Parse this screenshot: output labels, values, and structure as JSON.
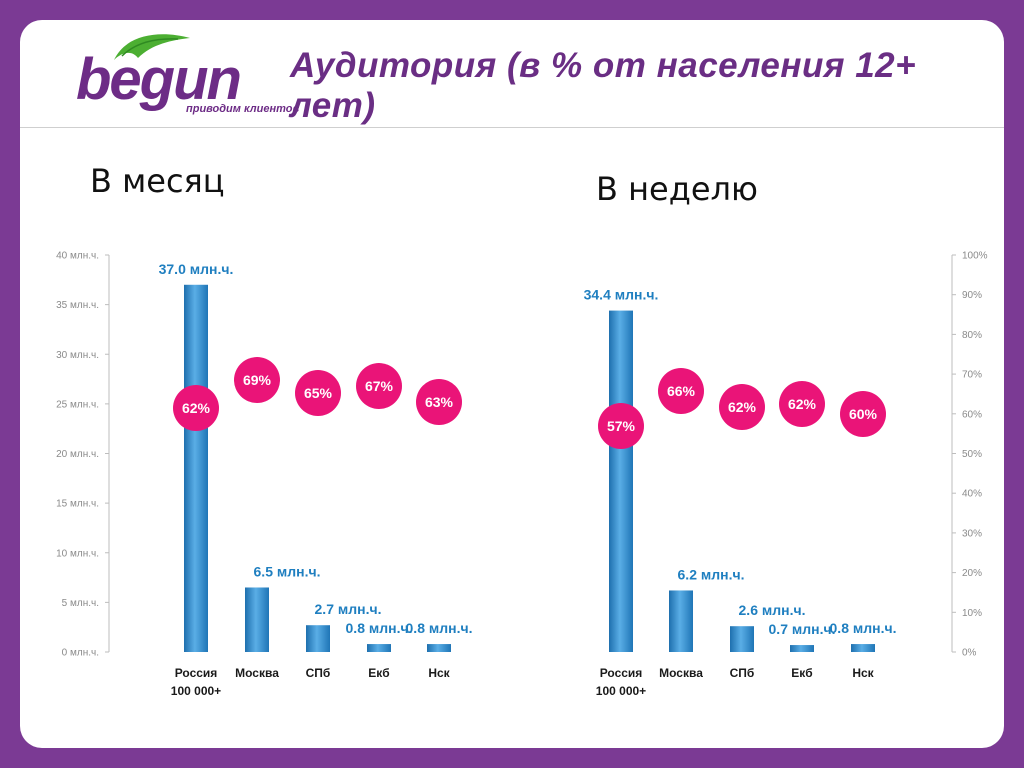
{
  "header": {
    "logo_text": "begun",
    "logo_tagline": "приводим клиентов",
    "title": "Аудитория (в % от населения 12+ лет)"
  },
  "colors": {
    "background": "#7b3a94",
    "bar": "#2f86c4",
    "bubble": "#ea1478",
    "value_label": "#1f7fc0",
    "logo_green": "#4caf32",
    "logo_purple": "#6d2c86"
  },
  "chart_data": [
    {
      "type": "bar",
      "title": "В месяц",
      "categories": [
        "Россия\n100 000+",
        "Москва",
        "СПб",
        "Екб",
        "Нск"
      ],
      "values": [
        37.0,
        6.5,
        2.7,
        0.8,
        0.8
      ],
      "value_labels": [
        "37.0 млн.ч.",
        "6.5 млн.ч.",
        "2.7 млн.ч.",
        "0.8 млн.ч.",
        "0.8 млн.ч."
      ],
      "percent_series": [
        62,
        69,
        65,
        67,
        63
      ],
      "percent_labels": [
        "62%",
        "69%",
        "65%",
        "67%",
        "63%"
      ],
      "ylim": [
        0,
        40
      ],
      "yticks": [
        0,
        5,
        10,
        15,
        20,
        25,
        30,
        35,
        40
      ],
      "ytick_labels": [
        "0 млн.ч.",
        "5 млн.ч.",
        "10 млн.ч.",
        "15 млн.ч.",
        "20 млн.ч.",
        "25 млн.ч.",
        "30 млн.ч.",
        "35 млн.ч.",
        "40 млн.ч."
      ]
    },
    {
      "type": "bar",
      "title": "В неделю",
      "categories": [
        "Россия\n100 000+",
        "Москва",
        "СПб",
        "Екб",
        "Нск"
      ],
      "values": [
        34.4,
        6.2,
        2.6,
        0.7,
        0.8
      ],
      "value_labels": [
        "34.4 млн.ч.",
        "6.2 млн.ч.",
        "2.6 млн.ч.",
        "0.7 млн.ч.",
        "0.8 млн.ч."
      ],
      "percent_series": [
        57,
        66,
        62,
        62,
        60
      ],
      "percent_labels": [
        "57%",
        "66%",
        "62%",
        "62%",
        "60%"
      ],
      "ylim": [
        0,
        40
      ],
      "y2lim": [
        0,
        100
      ],
      "y2ticks": [
        0,
        10,
        20,
        30,
        40,
        50,
        60,
        70,
        80,
        90,
        100
      ],
      "y2tick_labels": [
        "0%",
        "10%",
        "20%",
        "30%",
        "40%",
        "50%",
        "60%",
        "70%",
        "80%",
        "90%",
        "100%"
      ]
    }
  ]
}
